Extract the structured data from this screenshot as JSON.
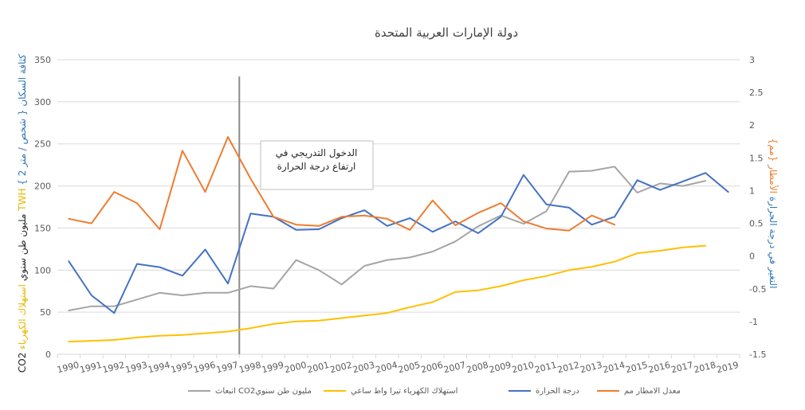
{
  "chart_data": {
    "type": "line",
    "title": "دولة الإمارات العربية المتحدة",
    "x": [
      1990,
      1991,
      1992,
      1993,
      1994,
      1995,
      1996,
      1997,
      1998,
      1999,
      2000,
      2001,
      2002,
      2003,
      2004,
      2005,
      2006,
      2007,
      2008,
      2009,
      2010,
      2011,
      2012,
      2013,
      2014,
      2015,
      2016,
      2017,
      2018,
      2019
    ],
    "left_axis": {
      "ylim": [
        0,
        350
      ],
      "ticks": [
        0,
        50,
        100,
        150,
        200,
        250,
        300,
        350
      ],
      "label_parts": [
        {
          "text": "CO2 مليون طن سنوي",
          "color": "#262626"
        },
        {
          "text": " استهلاك الكهرباء TWH",
          "color": "#e6b800"
        },
        {
          "text": " كثافة السكان { شخص / متر 2 }",
          "color": "#2e75b6"
        }
      ]
    },
    "right_axis": {
      "ylim": [
        -1.5,
        3
      ],
      "ticks": [
        -1.5,
        -1,
        -0.5,
        0,
        0.5,
        1,
        1.5,
        2,
        2.5,
        3
      ],
      "label_parts": [
        {
          "text": "التغير في درجة الحرارة",
          "color": "#2e75b6"
        },
        {
          "text": " الأمطار {مم}",
          "color": "#ed7d31"
        }
      ]
    },
    "series": [
      {
        "name": "انبعاث CO2مليون طن سنوي",
        "axis": "left",
        "color": "#a5a5a5",
        "values": [
          52,
          57,
          57,
          65,
          73,
          70,
          73,
          73,
          81,
          78,
          112,
          100,
          83,
          105,
          112,
          115,
          122,
          134,
          152,
          165,
          155,
          170,
          217,
          218,
          223,
          192,
          203,
          200,
          206,
          null
        ]
      },
      {
        "name": "استهلاك الكهرباء تيرا واط ساعي",
        "axis": "left",
        "color": "#ffc000",
        "values": [
          15,
          16,
          17,
          20,
          22,
          23,
          25,
          27,
          31,
          36,
          39,
          40,
          43,
          46,
          49,
          56,
          62,
          74,
          76,
          81,
          88,
          93,
          100,
          104,
          110,
          120,
          123,
          127,
          129,
          null
        ]
      },
      {
        "name": "درجة الحرارة",
        "axis": "right",
        "color": "#4472c4",
        "values": [
          -0.08,
          -0.6,
          -0.87,
          -0.12,
          -0.17,
          -0.3,
          0.1,
          -0.42,
          0.65,
          0.6,
          0.4,
          0.41,
          0.58,
          0.7,
          0.46,
          0.58,
          0.37,
          0.53,
          0.35,
          0.6,
          1.24,
          0.79,
          0.74,
          0.48,
          0.6,
          1.16,
          1.01,
          1.14,
          1.27,
          0.98
        ]
      },
      {
        "name": "معدل الامطار مم",
        "axis": "right",
        "color": "#ed7d31",
        "values": [
          0.57,
          0.5,
          0.98,
          0.81,
          0.41,
          1.61,
          0.98,
          1.82,
          1.18,
          0.6,
          0.48,
          0.46,
          0.6,
          0.62,
          0.57,
          0.4,
          0.85,
          0.47,
          0.66,
          0.81,
          0.53,
          0.42,
          0.39,
          0.62,
          0.48,
          null,
          null,
          null,
          null,
          null
        ]
      }
    ],
    "annotation": {
      "lines": [
        "الدخول التدريجي في",
        "ارتفاع درجة الحرارة"
      ],
      "at_x": 1997.5,
      "marker_top_value": 330
    },
    "legend_position": "bottom",
    "grid": true
  }
}
